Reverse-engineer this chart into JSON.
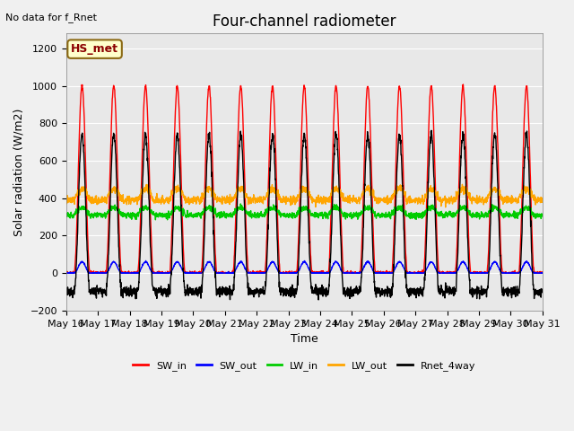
{
  "title": "Four-channel radiometer",
  "top_left_text": "No data for f_Rnet",
  "ylabel": "Solar radiation (W/m2)",
  "xlabel": "Time",
  "ylim": [
    -200,
    1280
  ],
  "yticks": [
    -200,
    0,
    200,
    400,
    600,
    800,
    1000,
    1200
  ],
  "x_tick_labels": [
    "May 16",
    "May 17",
    "May 18",
    "May 19",
    "May 20",
    "May 21",
    "May 22",
    "May 23",
    "May 24",
    "May 25",
    "May 26",
    "May 27",
    "May 28",
    "May 29",
    "May 30",
    "May 31"
  ],
  "n_days": 15,
  "legend_entries": [
    "SW_in",
    "SW_out",
    "LW_in",
    "LW_out",
    "Rnet_4way"
  ],
  "legend_colors": [
    "#ff0000",
    "#0000ff",
    "#00cc00",
    "#ffa500",
    "#000000"
  ],
  "annotation_text": "HS_met",
  "background_color": "#e8e8e8",
  "grid_color": "#ffffff",
  "SW_in_peak": 1000,
  "SW_out_peak": 60,
  "LW_in_base": 310,
  "LW_in_day_boost": 40,
  "LW_out_base": 390,
  "LW_out_day_boost": 60,
  "Rnet_peak": 860,
  "Rnet_night": -100
}
